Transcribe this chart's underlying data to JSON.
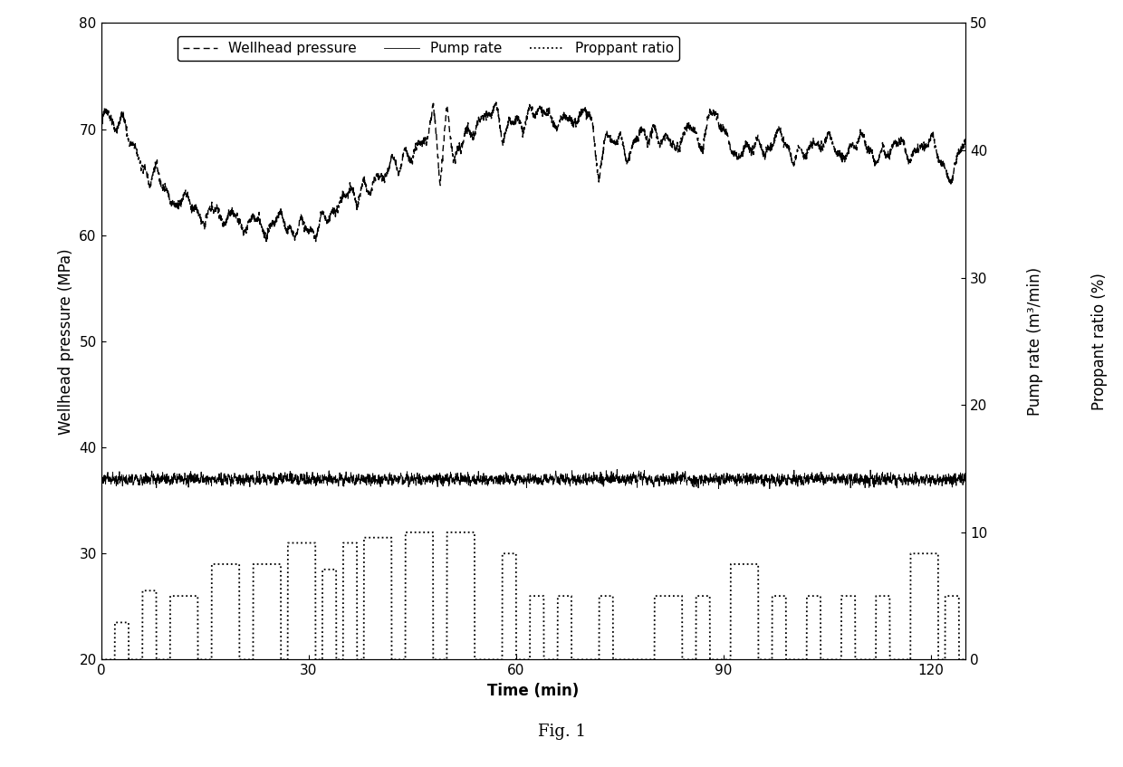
{
  "title": "Fig. 1",
  "xlabel": "Time (min)",
  "ylabel_left": "Wellhead pressure (MPa)",
  "ylabel_right1": "Pump rate (m³/min)",
  "ylabel_right2": "Proppant ratio (%)",
  "xlim": [
    0,
    125
  ],
  "ylim_left": [
    20,
    80
  ],
  "ylim_right": [
    0,
    50
  ],
  "xticks": [
    0,
    30,
    60,
    90,
    120
  ],
  "yticks_left": [
    20,
    30,
    40,
    50,
    60,
    70,
    80
  ],
  "yticks_right": [
    0,
    10,
    20,
    30,
    40,
    50
  ],
  "legend_labels": [
    "Wellhead pressure",
    "Pump rate",
    "Proppant ratio"
  ],
  "figsize": [
    12.4,
    8.47
  ],
  "dpi": 100,
  "background_color": "white",
  "legend_fontsize": 11,
  "axis_label_fontsize": 12,
  "tick_fontsize": 11,
  "title_fontsize": 13,
  "wp_points": [
    [
      0,
      70.5
    ],
    [
      1,
      72.0
    ],
    [
      2,
      69.5
    ],
    [
      3,
      71.5
    ],
    [
      4,
      69.0
    ],
    [
      5,
      68.0
    ],
    [
      6,
      66.5
    ],
    [
      7,
      65.0
    ],
    [
      8,
      66.5
    ],
    [
      9,
      64.5
    ],
    [
      10,
      63.5
    ],
    [
      11,
      62.5
    ],
    [
      12,
      64.0
    ],
    [
      13,
      63.0
    ],
    [
      14,
      62.0
    ],
    [
      15,
      61.0
    ],
    [
      16,
      63.0
    ],
    [
      17,
      62.0
    ],
    [
      18,
      61.0
    ],
    [
      19,
      62.5
    ],
    [
      20,
      61.0
    ],
    [
      21,
      60.5
    ],
    [
      22,
      62.0
    ],
    [
      23,
      61.0
    ],
    [
      24,
      60.0
    ],
    [
      25,
      61.5
    ],
    [
      26,
      62.0
    ],
    [
      27,
      60.5
    ],
    [
      28,
      60.0
    ],
    [
      29,
      61.5
    ],
    [
      30,
      60.5
    ],
    [
      31,
      60.0
    ],
    [
      32,
      62.0
    ],
    [
      33,
      61.5
    ],
    [
      34,
      62.5
    ],
    [
      35,
      63.5
    ],
    [
      36,
      64.5
    ],
    [
      37,
      63.0
    ],
    [
      38,
      65.0
    ],
    [
      39,
      64.0
    ],
    [
      40,
      66.0
    ],
    [
      41,
      65.0
    ],
    [
      42,
      67.5
    ],
    [
      43,
      66.0
    ],
    [
      44,
      68.0
    ],
    [
      45,
      67.0
    ],
    [
      46,
      69.0
    ],
    [
      47,
      68.5
    ],
    [
      48,
      72.5
    ],
    [
      49,
      65.0
    ],
    [
      50,
      72.0
    ],
    [
      51,
      67.0
    ],
    [
      52,
      68.5
    ],
    [
      53,
      70.0
    ],
    [
      54,
      69.5
    ],
    [
      55,
      71.5
    ],
    [
      56,
      71.0
    ],
    [
      57,
      72.5
    ],
    [
      58,
      69.0
    ],
    [
      59,
      70.5
    ],
    [
      60,
      71.0
    ],
    [
      61,
      70.0
    ],
    [
      62,
      72.0
    ],
    [
      63,
      71.5
    ],
    [
      64,
      72.0
    ],
    [
      65,
      71.0
    ],
    [
      66,
      70.0
    ],
    [
      67,
      71.5
    ],
    [
      68,
      70.5
    ],
    [
      69,
      71.0
    ],
    [
      70,
      72.0
    ],
    [
      71,
      70.5
    ],
    [
      72,
      65.0
    ],
    [
      73,
      70.0
    ],
    [
      74,
      68.5
    ],
    [
      75,
      69.5
    ],
    [
      76,
      67.0
    ],
    [
      77,
      68.5
    ],
    [
      78,
      70.0
    ],
    [
      79,
      69.0
    ],
    [
      80,
      70.0
    ],
    [
      81,
      68.5
    ],
    [
      82,
      69.5
    ],
    [
      83,
      68.0
    ],
    [
      84,
      69.0
    ],
    [
      85,
      70.5
    ],
    [
      86,
      69.5
    ],
    [
      87,
      68.0
    ],
    [
      88,
      72.0
    ],
    [
      89,
      71.0
    ],
    [
      90,
      70.0
    ],
    [
      91,
      68.5
    ],
    [
      92,
      67.0
    ],
    [
      93,
      68.5
    ],
    [
      94,
      68.0
    ],
    [
      95,
      69.0
    ],
    [
      96,
      67.5
    ],
    [
      97,
      68.5
    ],
    [
      98,
      70.0
    ],
    [
      99,
      68.5
    ],
    [
      100,
      67.0
    ],
    [
      101,
      68.0
    ],
    [
      102,
      67.5
    ],
    [
      103,
      69.0
    ],
    [
      104,
      68.0
    ],
    [
      105,
      69.5
    ],
    [
      106,
      68.5
    ],
    [
      107,
      67.0
    ],
    [
      108,
      68.0
    ],
    [
      109,
      68.5
    ],
    [
      110,
      69.5
    ],
    [
      111,
      68.0
    ],
    [
      112,
      67.0
    ],
    [
      113,
      68.0
    ],
    [
      114,
      67.5
    ],
    [
      115,
      69.0
    ],
    [
      116,
      68.5
    ],
    [
      117,
      67.0
    ],
    [
      118,
      68.5
    ],
    [
      119,
      68.0
    ],
    [
      120,
      69.5
    ],
    [
      121,
      67.5
    ],
    [
      122,
      66.0
    ],
    [
      123,
      65.0
    ],
    [
      124,
      68.0
    ],
    [
      125,
      68.5
    ]
  ],
  "pump_level": 37.0,
  "pump_noise": 0.25,
  "proppant_steps": [
    [
      0,
      20.0
    ],
    [
      2,
      23.5
    ],
    [
      4,
      20.0
    ],
    [
      6,
      26.5
    ],
    [
      8,
      20.0
    ],
    [
      10,
      26.0
    ],
    [
      12,
      26.0
    ],
    [
      14,
      20.0
    ],
    [
      16,
      29.0
    ],
    [
      18,
      29.0
    ],
    [
      20,
      20.0
    ],
    [
      22,
      29.0
    ],
    [
      24,
      29.0
    ],
    [
      26,
      20.0
    ],
    [
      27,
      31.0
    ],
    [
      29,
      31.0
    ],
    [
      31,
      20.0
    ],
    [
      32,
      28.5
    ],
    [
      34,
      20.0
    ],
    [
      35,
      31.0
    ],
    [
      37,
      20.0
    ],
    [
      38,
      31.5
    ],
    [
      40,
      31.5
    ],
    [
      42,
      20.0
    ],
    [
      44,
      32.0
    ],
    [
      46,
      32.0
    ],
    [
      48,
      20.0
    ],
    [
      50,
      32.0
    ],
    [
      52,
      32.0
    ],
    [
      54,
      20.0
    ],
    [
      58,
      30.0
    ],
    [
      60,
      20.0
    ],
    [
      62,
      26.0
    ],
    [
      64,
      20.0
    ],
    [
      66,
      26.0
    ],
    [
      68,
      20.0
    ],
    [
      72,
      26.0
    ],
    [
      74,
      20.0
    ],
    [
      80,
      26.0
    ],
    [
      82,
      26.0
    ],
    [
      84,
      20.0
    ],
    [
      86,
      26.0
    ],
    [
      88,
      20.0
    ],
    [
      91,
      29.0
    ],
    [
      93,
      29.0
    ],
    [
      95,
      20.0
    ],
    [
      97,
      26.0
    ],
    [
      99,
      20.0
    ],
    [
      102,
      26.0
    ],
    [
      104,
      20.0
    ],
    [
      107,
      26.0
    ],
    [
      109,
      20.0
    ],
    [
      112,
      26.0
    ],
    [
      114,
      20.0
    ],
    [
      117,
      30.0
    ],
    [
      119,
      30.0
    ],
    [
      121,
      20.0
    ],
    [
      122,
      26.0
    ],
    [
      124,
      20.0
    ]
  ]
}
